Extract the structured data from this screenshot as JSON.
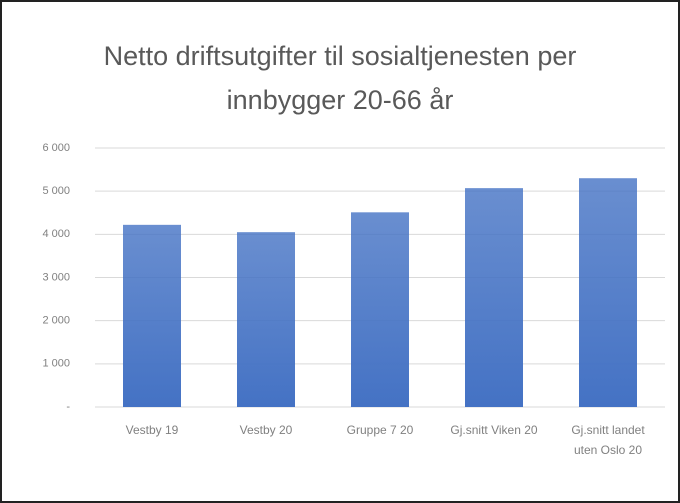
{
  "chart_data": {
    "type": "bar",
    "title": "Netto driftsutgifter til sosialtjenesten per innbygger 20-66 år",
    "categories": [
      "Vestby 19",
      "Vestby 20",
      "Gruppe 7 20",
      "Gj.snitt Viken 20",
      "Gj.snitt landet uten Oslo 20"
    ],
    "values": [
      4220,
      4050,
      4510,
      5070,
      5300
    ],
    "color": "#4472c4",
    "ylim": [
      0,
      6000
    ],
    "yticks": [
      {
        "value": 0,
        "label": "-"
      },
      {
        "value": 1000,
        "label": "1 000"
      },
      {
        "value": 2000,
        "label": "2 000"
      },
      {
        "value": 3000,
        "label": "3 000"
      },
      {
        "value": 4000,
        "label": "4 000"
      },
      {
        "value": 5000,
        "label": "5 000"
      },
      {
        "value": 6000,
        "label": "6 000"
      }
    ],
    "grid": true
  }
}
